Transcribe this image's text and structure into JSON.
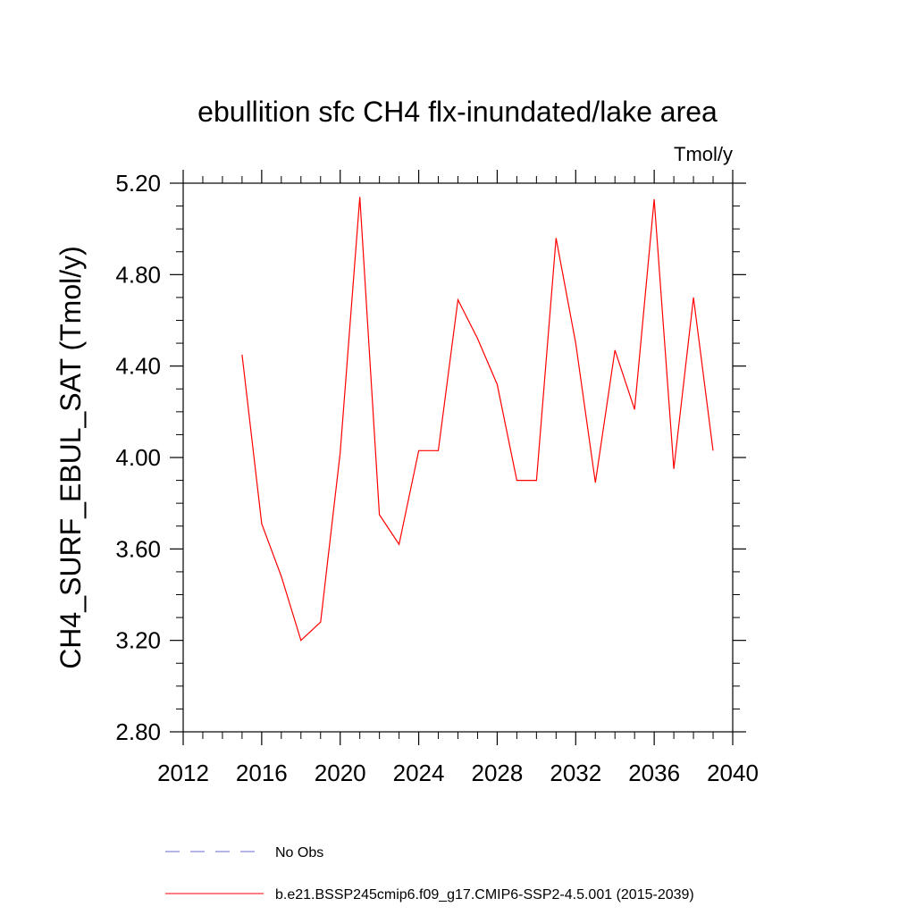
{
  "chart_data": {
    "type": "line",
    "title": "ebullition sfc CH4 flx-inundated/lake area",
    "units": "Tmol/y",
    "ylabel": "CH4_SURF_EBUL_SAT  (Tmol/y)",
    "xlabel": "",
    "xlim": [
      2012,
      2040
    ],
    "ylim": [
      2.8,
      5.2
    ],
    "x_ticks": [
      2012,
      2016,
      2020,
      2024,
      2028,
      2032,
      2036,
      2040
    ],
    "x_tick_labels": [
      "2012",
      "2016",
      "2020",
      "2024",
      "2028",
      "2032",
      "2036",
      "2040"
    ],
    "y_ticks": [
      2.8,
      3.2,
      3.6,
      4.0,
      4.4,
      4.8,
      5.2
    ],
    "y_tick_labels": [
      "2.80",
      "3.20",
      "3.60",
      "4.00",
      "4.40",
      "4.80",
      "5.20"
    ],
    "grid": false,
    "series": [
      {
        "name": "b.e21.BSSP245cmip6.f09_g17.CMIP6-SSP2-4.5.001 (2015-2039)",
        "color": "#ff0000",
        "dash": "solid",
        "x": [
          2015,
          2016,
          2017,
          2018,
          2019,
          2020,
          2021,
          2022,
          2023,
          2024,
          2025,
          2026,
          2027,
          2028,
          2029,
          2030,
          2031,
          2032,
          2033,
          2034,
          2035,
          2036,
          2037,
          2038,
          2039
        ],
        "y": [
          4.45,
          3.71,
          3.48,
          3.2,
          3.28,
          4.02,
          5.14,
          3.75,
          3.62,
          4.03,
          4.03,
          4.69,
          4.52,
          4.32,
          3.9,
          3.9,
          4.96,
          4.5,
          3.89,
          4.47,
          4.21,
          5.13,
          3.95,
          4.7,
          4.03
        ]
      }
    ],
    "legend": {
      "placement": "bottom",
      "entries": [
        {
          "label": "No Obs",
          "color": "#6a6ad0",
          "dash": "dashed"
        },
        {
          "label": "b.e21.BSSP245cmip6.f09_g17.CMIP6-SSP2-4.5.001 (2015-2039)",
          "color": "#ff0000",
          "dash": "solid"
        }
      ]
    }
  }
}
